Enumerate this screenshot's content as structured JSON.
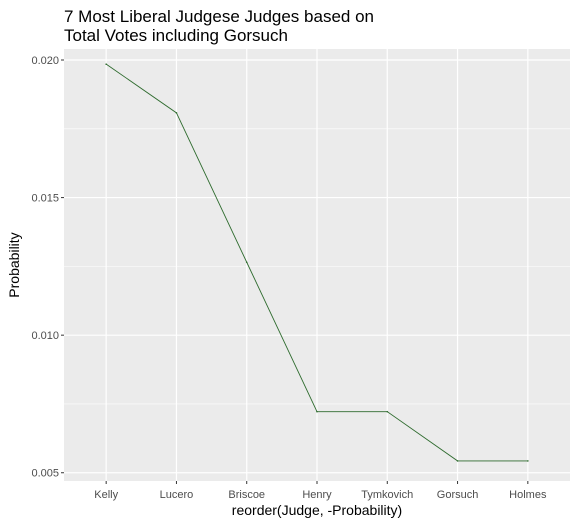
{
  "chart_data": {
    "type": "line",
    "title_lines": [
      "7 Most Liberal Judgese Judges based on",
      "Total Votes including Gorsuch"
    ],
    "xlabel": "reorder(Judge, -Probability)",
    "ylabel": "Probability",
    "categories": [
      "Kelly",
      "Lucero",
      "Briscoe",
      "Henry",
      "Tymkovich",
      "Gorsuch",
      "Holmes"
    ],
    "values": [
      0.01985,
      0.01808,
      0.01265,
      0.00722,
      0.00722,
      0.00543,
      0.00543
    ],
    "ylim": [
      0.0047,
      0.0204
    ],
    "yticks": [
      0.005,
      0.01,
      0.015,
      0.02
    ],
    "ytick_labels": [
      "0.005",
      "0.010",
      "0.015",
      "0.020"
    ],
    "grid": true,
    "colors": {
      "panel": "#ebebeb",
      "grid": "#ffffff",
      "line": "#2e6b2e"
    }
  }
}
